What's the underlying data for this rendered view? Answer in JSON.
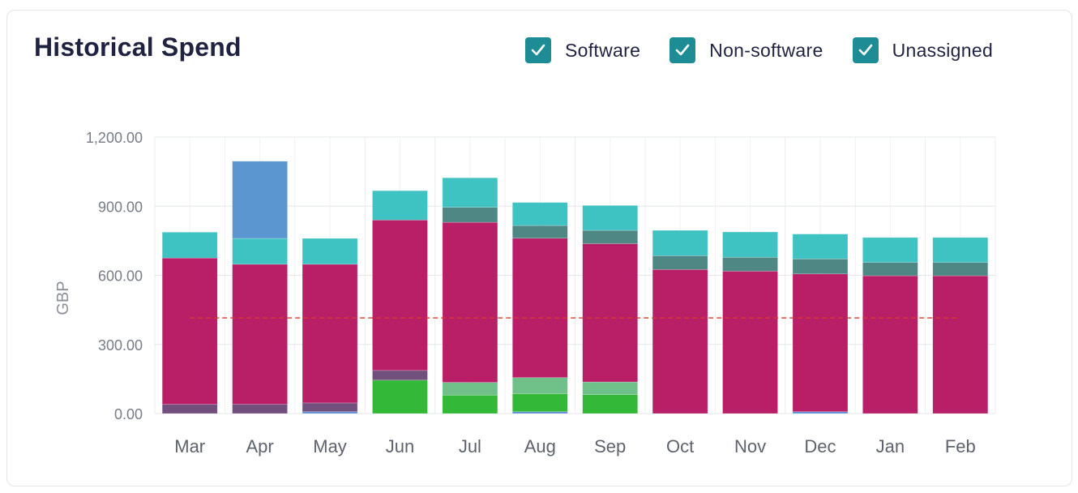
{
  "title": "Historical Spend",
  "legend": {
    "items": [
      {
        "label": "Software",
        "checked": true,
        "icon": "check-icon"
      },
      {
        "label": "Non-software",
        "checked": true,
        "icon": "check-icon"
      },
      {
        "label": "Unassigned",
        "checked": true,
        "icon": "check-icon"
      }
    ],
    "checkbox_color": "#1e8c95"
  },
  "chart_data": {
    "type": "bar",
    "stacked": true,
    "ylabel": "GBP",
    "xlabel": "",
    "ylim": [
      0,
      1200
    ],
    "yticks": [
      0,
      300,
      600,
      900,
      1200
    ],
    "ytick_labels": [
      "0.00",
      "300.00",
      "600.00",
      "900.00",
      "1,200.00"
    ],
    "grid": true,
    "categories": [
      "Mar",
      "Apr",
      "May",
      "Jun",
      "Jul",
      "Aug",
      "Sep",
      "Oct",
      "Nov",
      "Dec",
      "Jan",
      "Feb"
    ],
    "reference_line": {
      "value": 415,
      "color": "#d83a2c",
      "style": "dashed"
    },
    "series": [
      {
        "name": "blue-base",
        "color": "#5b8fd6",
        "values": [
          0,
          0,
          8,
          0,
          0,
          8,
          0,
          0,
          0,
          8,
          0,
          0
        ]
      },
      {
        "name": "purple",
        "color": "#72507e",
        "values": [
          40,
          40,
          38,
          0,
          0,
          0,
          0,
          0,
          0,
          0,
          0,
          0
        ]
      },
      {
        "name": "green",
        "color": "#33b838",
        "values": [
          0,
          0,
          0,
          145,
          80,
          78,
          82,
          0,
          0,
          0,
          0,
          0
        ]
      },
      {
        "name": "green-light",
        "color": "#70c08a",
        "values": [
          0,
          0,
          0,
          0,
          55,
          70,
          55,
          0,
          0,
          0,
          0,
          0
        ]
      },
      {
        "name": "purple-top",
        "color": "#72507e",
        "values": [
          0,
          0,
          0,
          42,
          0,
          0,
          0,
          0,
          0,
          0,
          0,
          0
        ]
      },
      {
        "name": "magenta",
        "color": "#b81f67",
        "values": [
          635,
          608,
          602,
          653,
          695,
          605,
          600,
          625,
          618,
          598,
          598,
          598
        ]
      },
      {
        "name": "dark-teal",
        "color": "#4f8784",
        "values": [
          0,
          0,
          0,
          0,
          65,
          55,
          58,
          60,
          60,
          65,
          58,
          58
        ]
      },
      {
        "name": "teal",
        "color": "#3ec2c2",
        "values": [
          112,
          112,
          112,
          127,
          128,
          100,
          108,
          110,
          110,
          108,
          108,
          108
        ]
      },
      {
        "name": "blue-top",
        "color": "#5b96d0",
        "values": [
          0,
          335,
          0,
          0,
          0,
          0,
          0,
          0,
          0,
          0,
          0,
          0
        ]
      }
    ]
  }
}
